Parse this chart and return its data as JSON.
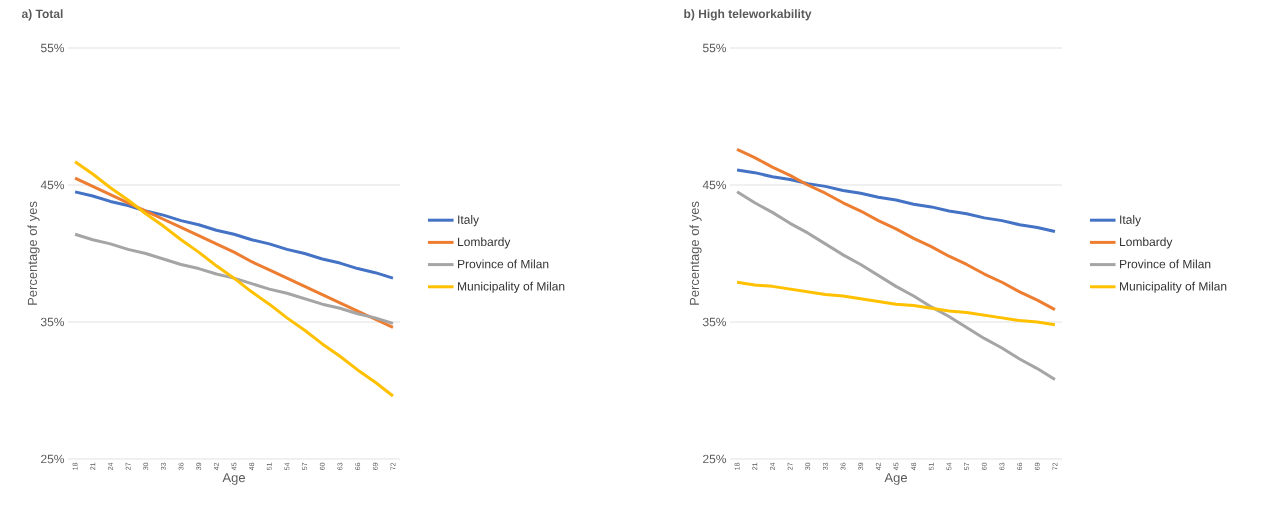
{
  "chart_data": [
    {
      "type": "line",
      "title": "a) Total",
      "xlabel": "Age",
      "ylabel": "Percentage of yes",
      "categories": [
        "18",
        "21",
        "24",
        "27",
        "30",
        "33",
        "36",
        "39",
        "42",
        "45",
        "48",
        "51",
        "54",
        "57",
        "60",
        "63",
        "66",
        "69",
        "72"
      ],
      "ylim": [
        25,
        55
      ],
      "yticks": [
        {
          "value": 25,
          "label": "25%"
        },
        {
          "value": 35,
          "label": "35%"
        },
        {
          "value": 45,
          "label": "45%"
        },
        {
          "value": 55,
          "label": "55%"
        }
      ],
      "grid": "y",
      "legend": "right",
      "marker": "none",
      "line_style": "solid",
      "series": [
        {
          "name": "Italy",
          "color": "#4472c4",
          "values": [
            44.5,
            44.2,
            43.8,
            43.5,
            43.1,
            42.8,
            42.4,
            42.1,
            41.7,
            41.4,
            41.0,
            40.7,
            40.3,
            40.0,
            39.6,
            39.3,
            38.9,
            38.6,
            38.2
          ]
        },
        {
          "name": "Lombardy",
          "color": "#ed7d31",
          "values": [
            45.5,
            44.9,
            44.3,
            43.7,
            43.1,
            42.5,
            41.9,
            41.3,
            40.7,
            40.1,
            39.4,
            38.8,
            38.2,
            37.6,
            37.0,
            36.4,
            35.8,
            35.2,
            34.6
          ]
        },
        {
          "name": "Province of Milan",
          "color": "#a5a5a5",
          "values": [
            41.4,
            41.0,
            40.7,
            40.3,
            40.0,
            39.6,
            39.2,
            38.9,
            38.5,
            38.2,
            37.8,
            37.4,
            37.1,
            36.7,
            36.3,
            36.0,
            35.6,
            35.3,
            34.9
          ]
        },
        {
          "name": "Municipality of Milan",
          "color": "#ffc000",
          "values": [
            46.7,
            45.8,
            44.8,
            43.9,
            42.9,
            42.0,
            41.0,
            40.1,
            39.1,
            38.2,
            37.2,
            36.3,
            35.3,
            34.4,
            33.4,
            32.5,
            31.5,
            30.6,
            29.6
          ]
        }
      ]
    },
    {
      "type": "line",
      "title": "b) High teleworkability",
      "xlabel": "Age",
      "ylabel": "Percentage of yes",
      "categories": [
        "18",
        "21",
        "24",
        "27",
        "30",
        "33",
        "36",
        "39",
        "42",
        "45",
        "48",
        "51",
        "54",
        "57",
        "60",
        "63",
        "66",
        "69",
        "72"
      ],
      "ylim": [
        25,
        55
      ],
      "yticks": [
        {
          "value": 25,
          "label": "25%"
        },
        {
          "value": 35,
          "label": "35%"
        },
        {
          "value": 45,
          "label": "45%"
        },
        {
          "value": 55,
          "label": "55%"
        }
      ],
      "grid": "y",
      "legend": "right",
      "marker": "none",
      "line_style": "solid",
      "series": [
        {
          "name": "Italy",
          "color": "#4472c4",
          "values": [
            46.1,
            45.9,
            45.6,
            45.4,
            45.1,
            44.9,
            44.6,
            44.4,
            44.1,
            43.9,
            43.6,
            43.4,
            43.1,
            42.9,
            42.6,
            42.4,
            42.1,
            41.9,
            41.6
          ]
        },
        {
          "name": "Lombardy",
          "color": "#ed7d31",
          "values": [
            47.6,
            47.0,
            46.3,
            45.7,
            45.0,
            44.4,
            43.7,
            43.1,
            42.4,
            41.8,
            41.1,
            40.5,
            39.8,
            39.2,
            38.5,
            37.9,
            37.2,
            36.6,
            35.9
          ]
        },
        {
          "name": "Province of Milan",
          "color": "#a5a5a5",
          "values": [
            44.5,
            43.7,
            43.0,
            42.2,
            41.5,
            40.7,
            39.9,
            39.2,
            38.4,
            37.6,
            36.9,
            36.1,
            35.4,
            34.6,
            33.8,
            33.1,
            32.3,
            31.6,
            30.8
          ]
        },
        {
          "name": "Municipality of Milan",
          "color": "#ffc000",
          "values": [
            37.9,
            37.7,
            37.6,
            37.4,
            37.2,
            37.0,
            36.9,
            36.7,
            36.5,
            36.3,
            36.2,
            36.0,
            35.8,
            35.7,
            35.5,
            35.3,
            35.1,
            35.0,
            34.8
          ]
        }
      ]
    }
  ]
}
